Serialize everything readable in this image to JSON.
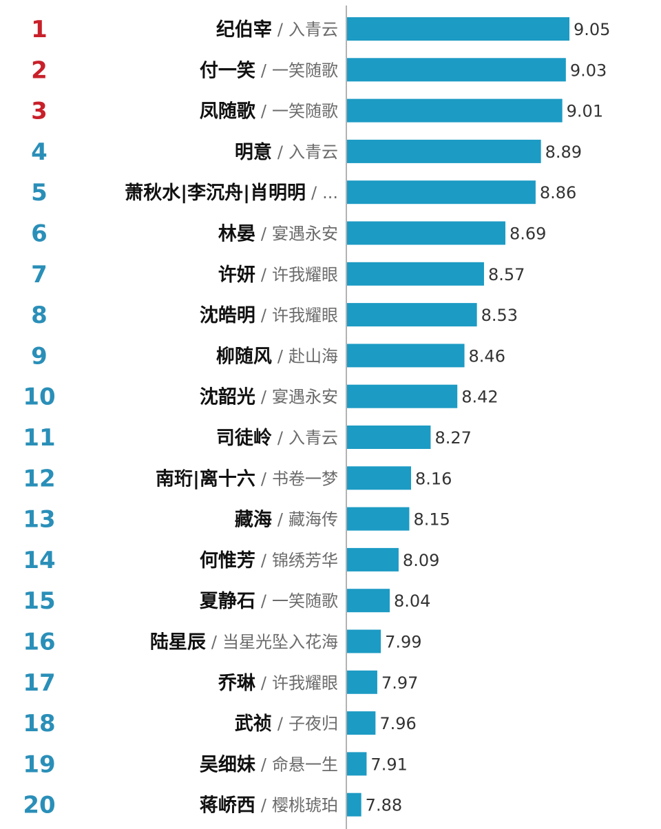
{
  "chart_data": {
    "type": "bar",
    "orientation": "horizontal",
    "title": "",
    "xlabel": "",
    "ylabel": "",
    "xlim": [
      7.8,
      9.1
    ],
    "grid": false,
    "legend": "none",
    "colors": {
      "bar": "#1c9bc4",
      "rank_top": "#c8202a",
      "rank_rest": "#2a8fb8",
      "axis": "#999999"
    },
    "rows": [
      {
        "rank": "1",
        "name": "纪伯宰",
        "drama": "入青云",
        "value": 9.05,
        "value_label": "9.05"
      },
      {
        "rank": "2",
        "name": "付一笑",
        "drama": "一笑随歌",
        "value": 9.03,
        "value_label": "9.03"
      },
      {
        "rank": "3",
        "name": "凤随歌",
        "drama": "一笑随歌",
        "value": 9.01,
        "value_label": "9.01"
      },
      {
        "rank": "4",
        "name": "明意",
        "drama": "入青云",
        "value": 8.89,
        "value_label": "8.89"
      },
      {
        "rank": "5",
        "name": "萧秋水|李沉舟|肖明明",
        "drama": "...",
        "value": 8.86,
        "value_label": "8.86"
      },
      {
        "rank": "6",
        "name": "林晏",
        "drama": "宴遇永安",
        "value": 8.69,
        "value_label": "8.69"
      },
      {
        "rank": "7",
        "name": "许妍",
        "drama": "许我耀眼",
        "value": 8.57,
        "value_label": "8.57"
      },
      {
        "rank": "8",
        "name": "沈皓明",
        "drama": "许我耀眼",
        "value": 8.53,
        "value_label": "8.53"
      },
      {
        "rank": "9",
        "name": "柳随风",
        "drama": "赴山海",
        "value": 8.46,
        "value_label": "8.46"
      },
      {
        "rank": "10",
        "name": "沈韶光",
        "drama": "宴遇永安",
        "value": 8.42,
        "value_label": "8.42"
      },
      {
        "rank": "11",
        "name": "司徒岭",
        "drama": "入青云",
        "value": 8.27,
        "value_label": "8.27"
      },
      {
        "rank": "12",
        "name": "南珩|离十六",
        "drama": "书卷一梦",
        "value": 8.16,
        "value_label": "8.16"
      },
      {
        "rank": "13",
        "name": "藏海",
        "drama": "藏海传",
        "value": 8.15,
        "value_label": "8.15"
      },
      {
        "rank": "14",
        "name": "何惟芳",
        "drama": "锦绣芳华",
        "value": 8.09,
        "value_label": "8.09"
      },
      {
        "rank": "15",
        "name": "夏静石",
        "drama": "一笑随歌",
        "value": 8.04,
        "value_label": "8.04"
      },
      {
        "rank": "16",
        "name": "陆星辰",
        "drama": "当星光坠入花海",
        "value": 7.99,
        "value_label": "7.99"
      },
      {
        "rank": "17",
        "name": "乔琳",
        "drama": "许我耀眼",
        "value": 7.97,
        "value_label": "7.97"
      },
      {
        "rank": "18",
        "name": "武祯",
        "drama": "子夜归",
        "value": 7.96,
        "value_label": "7.96"
      },
      {
        "rank": "19",
        "name": "吴细妹",
        "drama": "命悬一生",
        "value": 7.91,
        "value_label": "7.91"
      },
      {
        "rank": "20",
        "name": "蒋峤西",
        "drama": "樱桃琥珀",
        "value": 7.88,
        "value_label": "7.88"
      }
    ],
    "separator": "/"
  }
}
